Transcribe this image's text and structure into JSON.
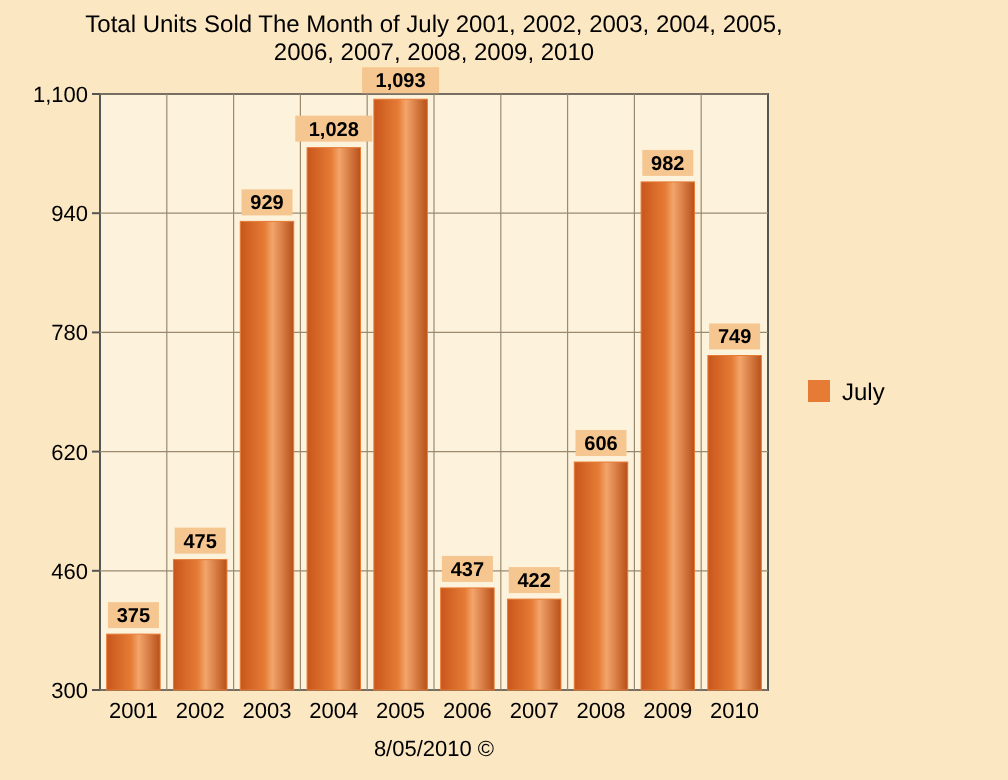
{
  "chart_data": {
    "type": "bar",
    "title": "Total Units Sold The Month of July 2001, 2002, 2003, 2004, 2005, 2006, 2007, 2008, 2009, 2010",
    "categories": [
      "2001",
      "2002",
      "2003",
      "2004",
      "2005",
      "2006",
      "2007",
      "2008",
      "2009",
      "2010"
    ],
    "series": [
      {
        "name": "July",
        "color": "#e57b35",
        "values": [
          375,
          475,
          929,
          1028,
          1093,
          437,
          422,
          606,
          982,
          749
        ],
        "value_labels": [
          "375",
          "475",
          "929",
          "1,028",
          "1,093",
          "437",
          "422",
          "606",
          "982",
          "749"
        ]
      }
    ],
    "ylim": [
      300,
      1100
    ],
    "yticks": [
      300,
      460,
      620,
      780,
      940,
      {
        "value": 1100,
        "label": "1,100"
      }
    ],
    "grid": true,
    "legend": "right",
    "annotations": [
      "8/05/2010 ©"
    ]
  }
}
